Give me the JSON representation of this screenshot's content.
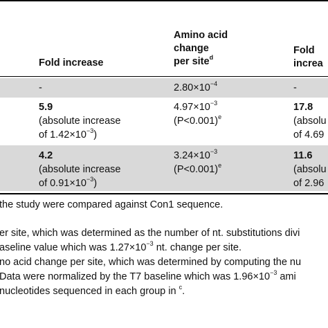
{
  "colors": {
    "row_shade": "#d9d9d9",
    "rule": "#000000"
  },
  "header": {
    "col1": "Fold increase",
    "col2_line1": "Amino acid",
    "col2_line2": "change",
    "col2_line3": "per site",
    "col2_sup": "d",
    "col3_line1": "Fold",
    "col3_line2": "increa"
  },
  "rows": [
    {
      "col1": "-",
      "col2_base": "2.80×10",
      "col2_exp": "−4",
      "col3": "-"
    },
    {
      "col1_value": "5.9",
      "col1_line2": "(absolute increase",
      "col1_line3_prefix": "of 1.42×10",
      "col1_line3_exp": "−3",
      "col1_line3_suffix": ")",
      "col2_base": "4.97×10",
      "col2_exp": "−3",
      "col2_line2": "(P<0.001)",
      "col2_line2_sup": "e",
      "col3_value": "17.8",
      "col3_line2": "(absolu",
      "col3_line3": "of 4.69"
    },
    {
      "col1_value": "4.2",
      "col1_line2": "(absolute increase",
      "col1_line3_prefix": "of 0.91×10",
      "col1_line3_exp": "−3",
      "col1_line3_suffix": ")",
      "col2_base": "3.24×10",
      "col2_exp": "−3",
      "col2_line2": "(P<0.001)",
      "col2_line2_sup": "e",
      "col3_value": "11.6",
      "col3_line2": "(absolu",
      "col3_line3": "of 2.96"
    }
  ],
  "footnotes": {
    "line1": "the study were compared against Con1 sequence.",
    "line2": "er site, which was determined as the number of nt. substitutions divi",
    "line3_prefix": "aseline value which was 1.27×10",
    "line3_exp": "−3",
    "line3_suffix": " nt. change per site.",
    "line4": "no acid change per site, which was determined by computing the nu",
    "line5_prefix": " Data were normalized by the T7 baseline which was 1.96×10",
    "line5_exp": "−3",
    "line5_suffix": " ami",
    "line6_prefix": " nucleotides sequenced in each group in ",
    "line6_sup": "c",
    "line6_suffix": "."
  }
}
